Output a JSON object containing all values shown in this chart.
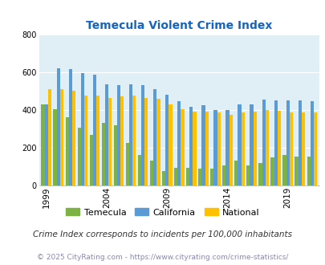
{
  "title": "Temecula Violent Crime Index",
  "years": [
    1999,
    2000,
    2001,
    2002,
    2003,
    2004,
    2005,
    2006,
    2007,
    2008,
    2009,
    2010,
    2011,
    2012,
    2013,
    2014,
    2015,
    2016,
    2017,
    2018,
    2019,
    2020,
    2021
  ],
  "temecula": [
    430,
    405,
    360,
    305,
    270,
    330,
    320,
    225,
    160,
    130,
    75,
    95,
    95,
    90,
    90,
    105,
    130,
    105,
    120,
    150,
    160,
    155,
    155
  ],
  "california": [
    430,
    620,
    615,
    595,
    585,
    535,
    530,
    535,
    530,
    510,
    480,
    445,
    415,
    425,
    400,
    400,
    430,
    430,
    455,
    450,
    450,
    450,
    445
  ],
  "national": [
    510,
    510,
    500,
    475,
    475,
    465,
    470,
    475,
    465,
    460,
    430,
    405,
    390,
    390,
    385,
    375,
    385,
    390,
    400,
    395,
    385,
    385,
    385
  ],
  "temecula_color": "#7cb342",
  "california_color": "#5b9bd5",
  "national_color": "#ffc000",
  "background_color": "#e0eff5",
  "title_color": "#1565c0",
  "ylim": [
    0,
    800
  ],
  "yticks": [
    0,
    200,
    400,
    600,
    800
  ],
  "xlabel_ticks": [
    1999,
    2004,
    2009,
    2014,
    2019
  ],
  "footnote1": "Crime Index corresponds to incidents per 100,000 inhabitants",
  "footnote2": "© 2025 CityRating.com - https://www.cityrating.com/crime-statistics/",
  "bar_width": 0.28
}
